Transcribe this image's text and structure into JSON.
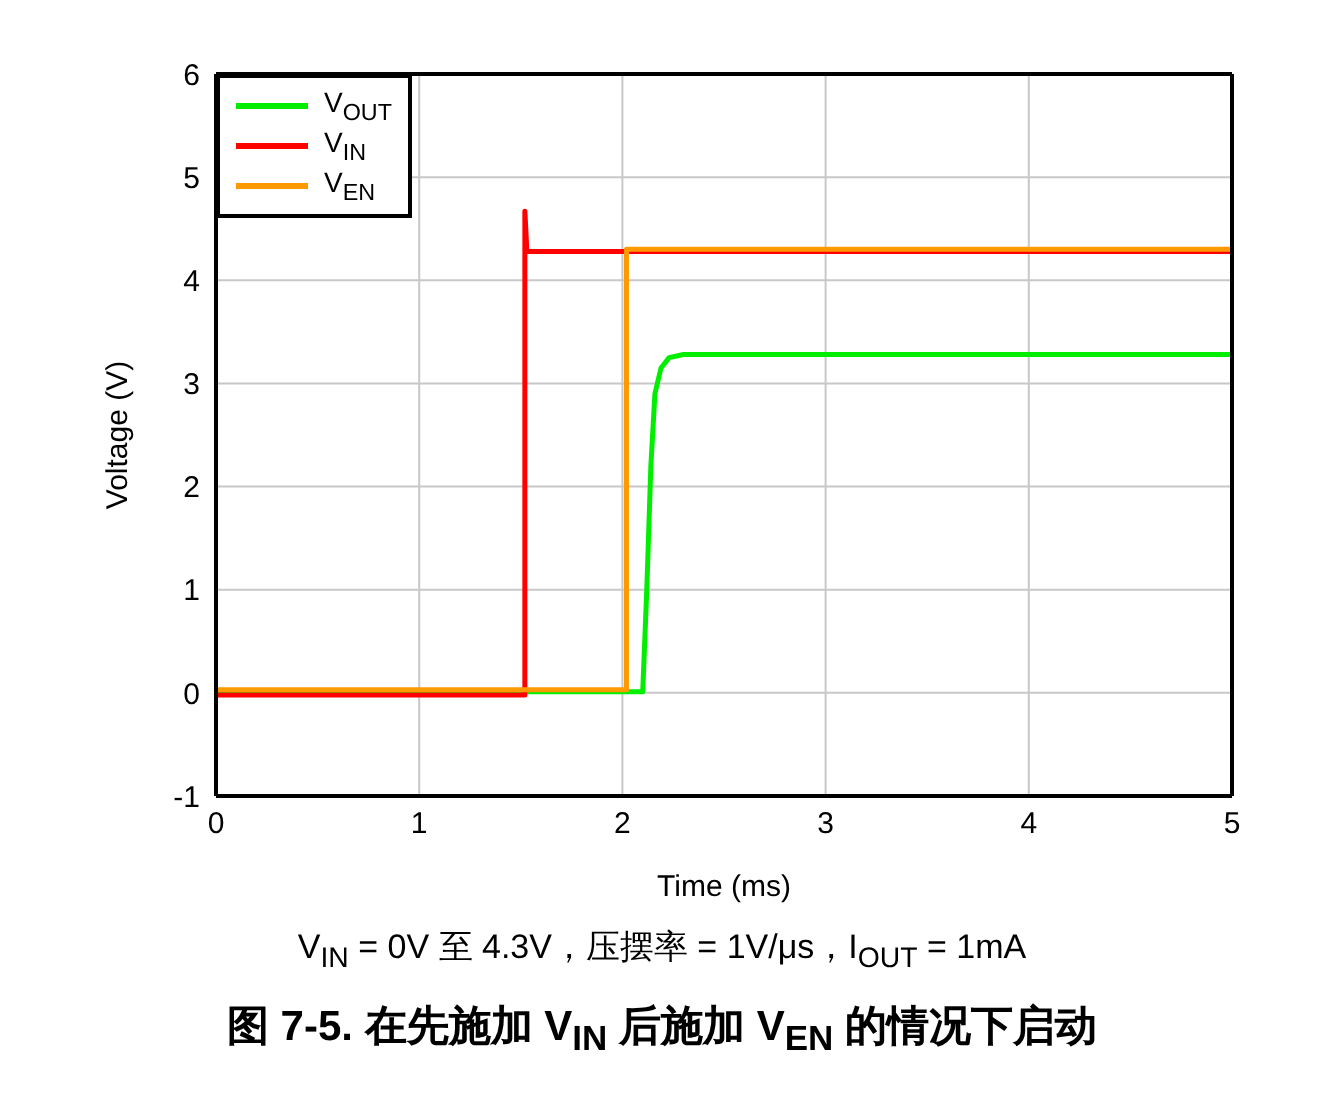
{
  "chart_data": {
    "type": "line",
    "title": "图 7-5. 在先施加 V$_{IN}$ 后施加 V$_{EN}$ 的情况下启动",
    "subtitle": "V$_{IN}$ = 0V 至 4.3V，压摆率 = 1V/μs，I$_{OUT}$ = 1mA",
    "xlabel": "Time (ms)",
    "ylabel": "Voltage (V)",
    "xlim": [
      0,
      5
    ],
    "xticks": [
      0,
      1,
      2,
      3,
      4,
      5
    ],
    "ylim": [
      -1,
      6
    ],
    "yticks": [
      -1,
      0,
      1,
      2,
      3,
      4,
      5,
      6
    ],
    "grid": true,
    "legend": "top left",
    "marker": "none",
    "line_style": "solid",
    "series": [
      {
        "name": "V$_{OUT}$",
        "color": "#00ee00",
        "x": [
          0,
          2.1,
          2.12,
          2.14,
          2.16,
          2.19,
          2.23,
          2.3,
          5
        ],
        "values": [
          0.01,
          0.01,
          1.0,
          2.2,
          2.9,
          3.15,
          3.25,
          3.28,
          3.28
        ]
      },
      {
        "name": "V$_{IN}$",
        "color": "#ff0000",
        "x": [
          0,
          1.52,
          1.52,
          1.53,
          1.6,
          5
        ],
        "values": [
          -0.02,
          -0.02,
          4.67,
          4.28,
          4.28,
          4.28
        ]
      },
      {
        "name": "V$_{EN}$",
        "color": "#ff9900",
        "x": [
          0,
          2.02,
          2.02,
          5
        ],
        "values": [
          0.03,
          0.03,
          4.3,
          4.3
        ]
      }
    ]
  }
}
